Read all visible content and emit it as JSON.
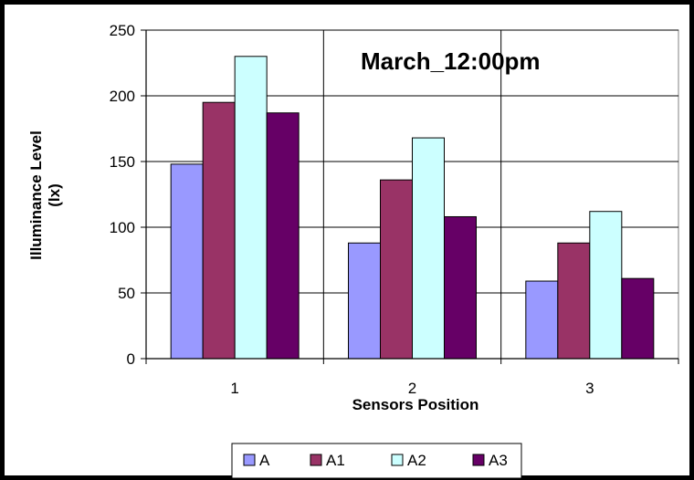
{
  "chart_data": {
    "type": "bar",
    "title": "March_12:00pm",
    "xlabel": "Sensors Position",
    "ylabel": "Illuminance Level (lx)",
    "ylabel_lines": [
      "Illuminance Level",
      "(lx)"
    ],
    "categories": [
      "1",
      "2",
      "3"
    ],
    "ylim": [
      0,
      250
    ],
    "yticks": [
      0,
      50,
      100,
      150,
      200,
      250
    ],
    "grid": true,
    "legend_position": "bottom",
    "series": [
      {
        "name": "A",
        "color": "#9999ff",
        "values": [
          148,
          88,
          59
        ]
      },
      {
        "name": "A1",
        "color": "#993366",
        "values": [
          195,
          136,
          88
        ]
      },
      {
        "name": "A2",
        "color": "#ccffff",
        "values": [
          230,
          168,
          112
        ]
      },
      {
        "name": "A3",
        "color": "#660066",
        "values": [
          187,
          108,
          61
        ]
      }
    ]
  }
}
